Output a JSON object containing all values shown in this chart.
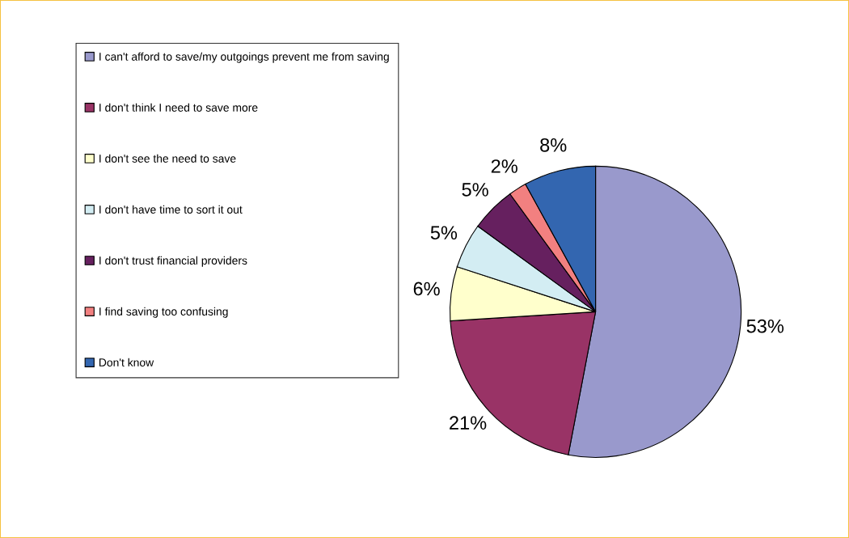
{
  "chart_data": {
    "type": "pie",
    "categories": [
      "I can't afford to save/my outgoings prevent me from saving",
      "I don't think I need to save more",
      "I don't see the need to save",
      "I don't have time to sort it out",
      "I don't trust financial providers",
      "I find saving too confusing",
      "Don't know"
    ],
    "values": [
      53,
      21,
      6,
      5,
      5,
      2,
      8
    ],
    "colors": [
      "#9999cc",
      "#993366",
      "#ffffcc",
      "#d3edf3",
      "#66205f",
      "#f28080",
      "#3366b0"
    ],
    "value_labels": [
      "53%",
      "21%",
      "6%",
      "5%",
      "5%",
      "2%",
      "8%"
    ],
    "legend": "left"
  }
}
